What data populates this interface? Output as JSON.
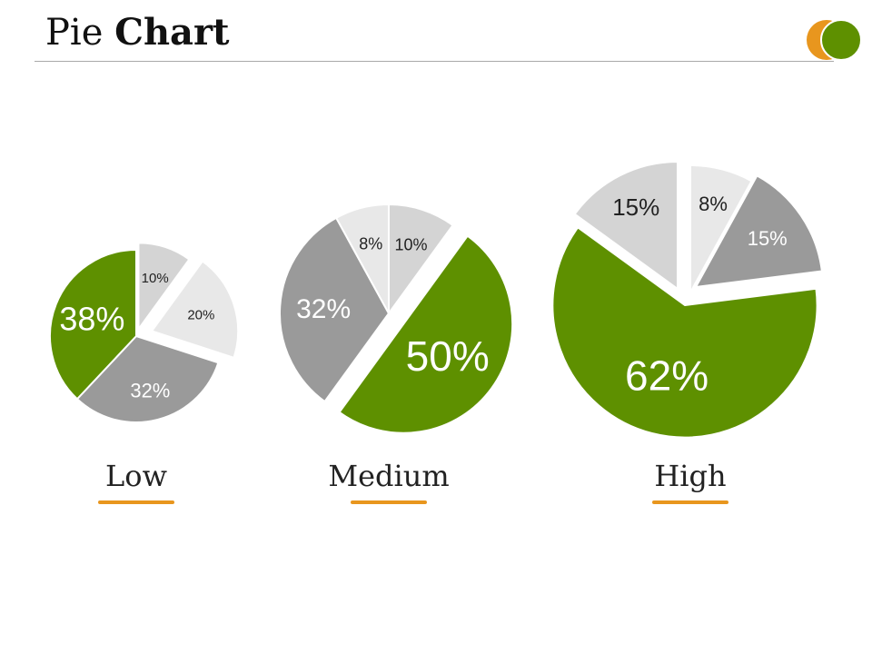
{
  "header": {
    "title_light": "Pie",
    "title_bold": "Chart"
  },
  "colors": {
    "accent_orange": "#E8961E",
    "accent_green": "#5E9000",
    "slice_green": "#5E9000",
    "slice_gray_dark": "#9A9A9A",
    "slice_gray_mid": "#D4D4D4",
    "slice_gray_light": "#E8E8E8",
    "rule": "#A9A9A9"
  },
  "logo": {
    "icon": "overlapping-circles-logo"
  },
  "chart_data": [
    {
      "type": "pie",
      "label": "Low",
      "slices": [
        {
          "label": "10%",
          "value": 10,
          "color": "#D4D4D4"
        },
        {
          "label": "20%",
          "value": 20,
          "color": "#E8E8E8"
        },
        {
          "label": "32%",
          "value": 32,
          "color": "#9A9A9A"
        },
        {
          "label": "38%",
          "value": 38,
          "color": "#5E9000"
        }
      ]
    },
    {
      "type": "pie",
      "label": "Medium",
      "slices": [
        {
          "label": "10%",
          "value": 10,
          "color": "#D4D4D4"
        },
        {
          "label": "50%",
          "value": 50,
          "color": "#5E9000"
        },
        {
          "label": "32%",
          "value": 32,
          "color": "#9A9A9A"
        },
        {
          "label": "8%",
          "value": 8,
          "color": "#E8E8E8"
        }
      ]
    },
    {
      "type": "pie",
      "label": "High",
      "slices": [
        {
          "label": "8%",
          "value": 8,
          "color": "#E8E8E8"
        },
        {
          "label": "15%",
          "value": 15,
          "color": "#9A9A9A"
        },
        {
          "label": "62%",
          "value": 62,
          "color": "#5E9000"
        },
        {
          "label": "15%",
          "value": 15,
          "color": "#D4D4D4"
        }
      ]
    }
  ]
}
